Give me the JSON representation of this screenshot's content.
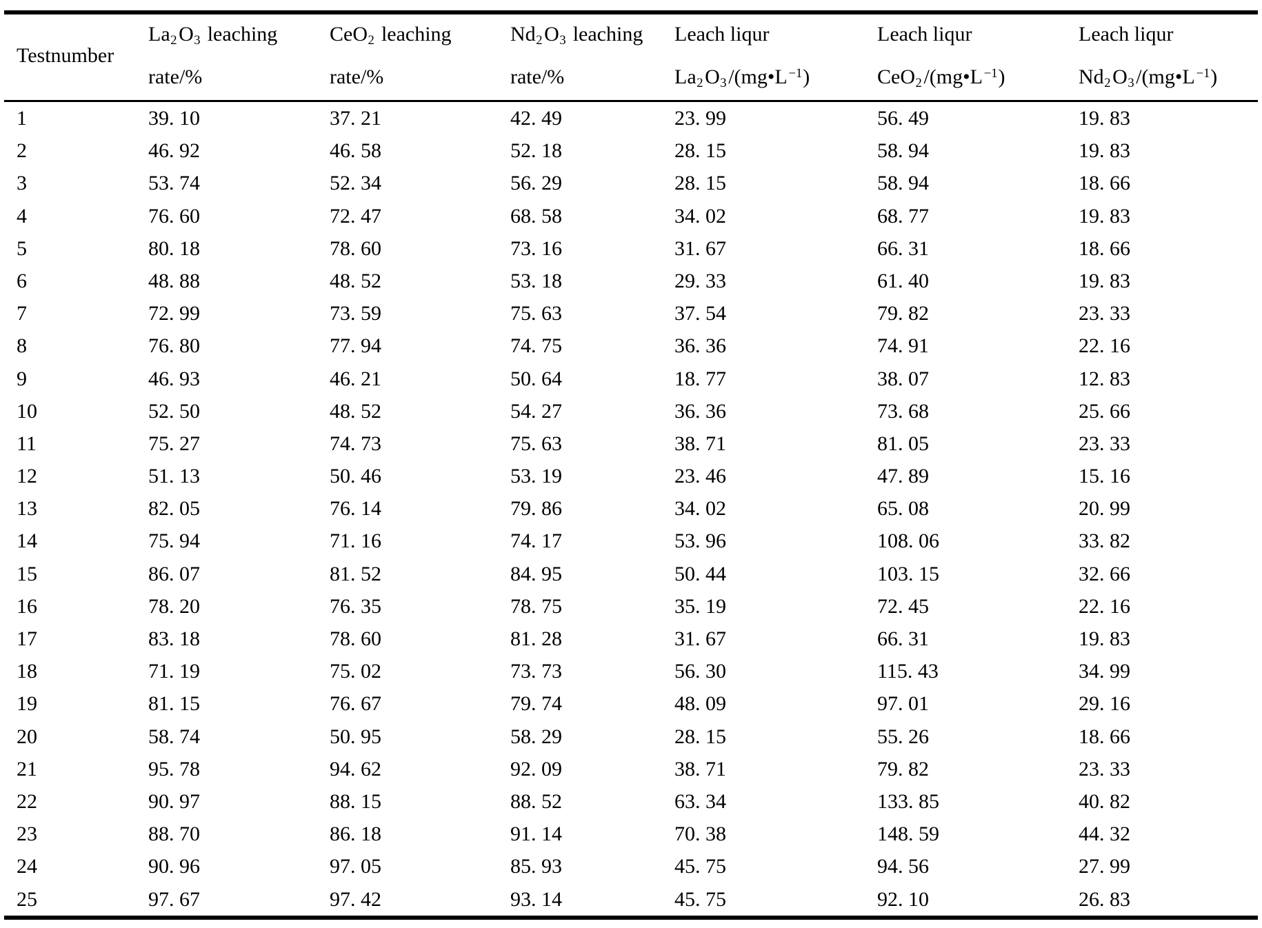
{
  "table": {
    "columns": [
      {
        "name": "testnumber",
        "vcenter": true,
        "lines": [
          [
            {
              "t": "Testnumber"
            }
          ]
        ]
      },
      {
        "name": "la2o3-leaching-rate",
        "vcenter": false,
        "lines": [
          [
            {
              "t": "La"
            },
            {
              "sub": "2"
            },
            {
              "t": "O"
            },
            {
              "sub": "3"
            },
            {
              "t": " leaching"
            }
          ],
          [
            {
              "t": "rate/%"
            }
          ]
        ]
      },
      {
        "name": "ceo2-leaching-rate",
        "vcenter": false,
        "lines": [
          [
            {
              "t": "CeO"
            },
            {
              "sub": "2"
            },
            {
              "t": " leaching"
            }
          ],
          [
            {
              "t": "rate/%"
            }
          ]
        ]
      },
      {
        "name": "nd2o3-leaching-rate",
        "vcenter": false,
        "lines": [
          [
            {
              "t": "Nd"
            },
            {
              "sub": "2"
            },
            {
              "t": "O"
            },
            {
              "sub": "3"
            },
            {
              "t": " leaching"
            }
          ],
          [
            {
              "t": "rate/%"
            }
          ]
        ]
      },
      {
        "name": "leach-liqur-la2o3",
        "vcenter": false,
        "lines": [
          [
            {
              "t": "Leach liqur"
            }
          ],
          [
            {
              "t": "La"
            },
            {
              "sub": "2"
            },
            {
              "t": "O"
            },
            {
              "sub": "3"
            },
            {
              "t": "/(mg•L"
            },
            {
              "sup": "−1"
            },
            {
              "t": ")"
            }
          ]
        ]
      },
      {
        "name": "leach-liqur-ceo2",
        "vcenter": false,
        "lines": [
          [
            {
              "t": "Leach liqur"
            }
          ],
          [
            {
              "t": "CeO"
            },
            {
              "sub": "2"
            },
            {
              "t": "/(mg•L"
            },
            {
              "sup": "−1"
            },
            {
              "t": ")"
            }
          ]
        ]
      },
      {
        "name": "leach-liqur-nd2o3",
        "vcenter": false,
        "lines": [
          [
            {
              "t": "Leach liqur"
            }
          ],
          [
            {
              "t": "Nd"
            },
            {
              "sub": "2"
            },
            {
              "t": "O"
            },
            {
              "sub": "3"
            },
            {
              "t": "/(mg•L"
            },
            {
              "sup": "−1"
            },
            {
              "t": ")"
            }
          ]
        ]
      }
    ],
    "rows": [
      [
        "1",
        "39. 10",
        "37. 21",
        "42. 49",
        "23. 99",
        "56. 49",
        "19. 83"
      ],
      [
        "2",
        "46. 92",
        "46. 58",
        "52. 18",
        "28. 15",
        "58. 94",
        "19. 83"
      ],
      [
        "3",
        "53. 74",
        "52. 34",
        "56. 29",
        "28. 15",
        "58. 94",
        "18. 66"
      ],
      [
        "4",
        "76. 60",
        "72. 47",
        "68. 58",
        "34. 02",
        "68. 77",
        "19. 83"
      ],
      [
        "5",
        "80. 18",
        "78. 60",
        "73. 16",
        "31. 67",
        "66. 31",
        "18. 66"
      ],
      [
        "6",
        "48. 88",
        "48. 52",
        "53. 18",
        "29. 33",
        "61. 40",
        "19. 83"
      ],
      [
        "7",
        "72. 99",
        "73. 59",
        "75. 63",
        "37. 54",
        "79. 82",
        "23. 33"
      ],
      [
        "8",
        "76. 80",
        "77. 94",
        "74. 75",
        "36. 36",
        "74. 91",
        "22. 16"
      ],
      [
        "9",
        "46. 93",
        "46. 21",
        "50. 64",
        "18. 77",
        "38. 07",
        "12. 83"
      ],
      [
        "10",
        "52. 50",
        "48. 52",
        "54. 27",
        "36. 36",
        "73. 68",
        "25. 66"
      ],
      [
        "11",
        "75. 27",
        "74. 73",
        "75. 63",
        "38. 71",
        "81. 05",
        "23. 33"
      ],
      [
        "12",
        "51. 13",
        "50. 46",
        "53. 19",
        "23. 46",
        "47. 89",
        "15. 16"
      ],
      [
        "13",
        "82. 05",
        "76. 14",
        "79. 86",
        "34. 02",
        "65. 08",
        "20. 99"
      ],
      [
        "14",
        "75. 94",
        "71. 16",
        "74. 17",
        "53. 96",
        "108. 06",
        "33. 82"
      ],
      [
        "15",
        "86. 07",
        "81. 52",
        "84. 95",
        "50. 44",
        "103. 15",
        "32. 66"
      ],
      [
        "16",
        "78. 20",
        "76. 35",
        "78. 75",
        "35. 19",
        "72. 45",
        "22. 16"
      ],
      [
        "17",
        "83. 18",
        "78. 60",
        "81. 28",
        "31. 67",
        "66. 31",
        "19. 83"
      ],
      [
        "18",
        "71. 19",
        "75. 02",
        "73. 73",
        "56. 30",
        "115. 43",
        "34. 99"
      ],
      [
        "19",
        "81. 15",
        "76. 67",
        "79. 74",
        "48. 09",
        "97. 01",
        "29. 16"
      ],
      [
        "20",
        "58. 74",
        "50. 95",
        "58. 29",
        "28. 15",
        "55. 26",
        "18. 66"
      ],
      [
        "21",
        "95. 78",
        "94. 62",
        "92. 09",
        "38. 71",
        "79. 82",
        "23. 33"
      ],
      [
        "22",
        "90. 97",
        "88. 15",
        "88. 52",
        "63. 34",
        "133. 85",
        "40. 82"
      ],
      [
        "23",
        "88. 70",
        "86. 18",
        "91. 14",
        "70. 38",
        "148. 59",
        "44. 32"
      ],
      [
        "24",
        "90. 96",
        "97. 05",
        "85. 93",
        "45. 75",
        "94. 56",
        "27. 99"
      ],
      [
        "25",
        "97. 67",
        "97. 42",
        "93. 14",
        "45. 75",
        "92. 10",
        "26. 83"
      ]
    ]
  },
  "colors": {
    "text": "#000000",
    "background": "#ffffff",
    "rule": "#000000"
  }
}
